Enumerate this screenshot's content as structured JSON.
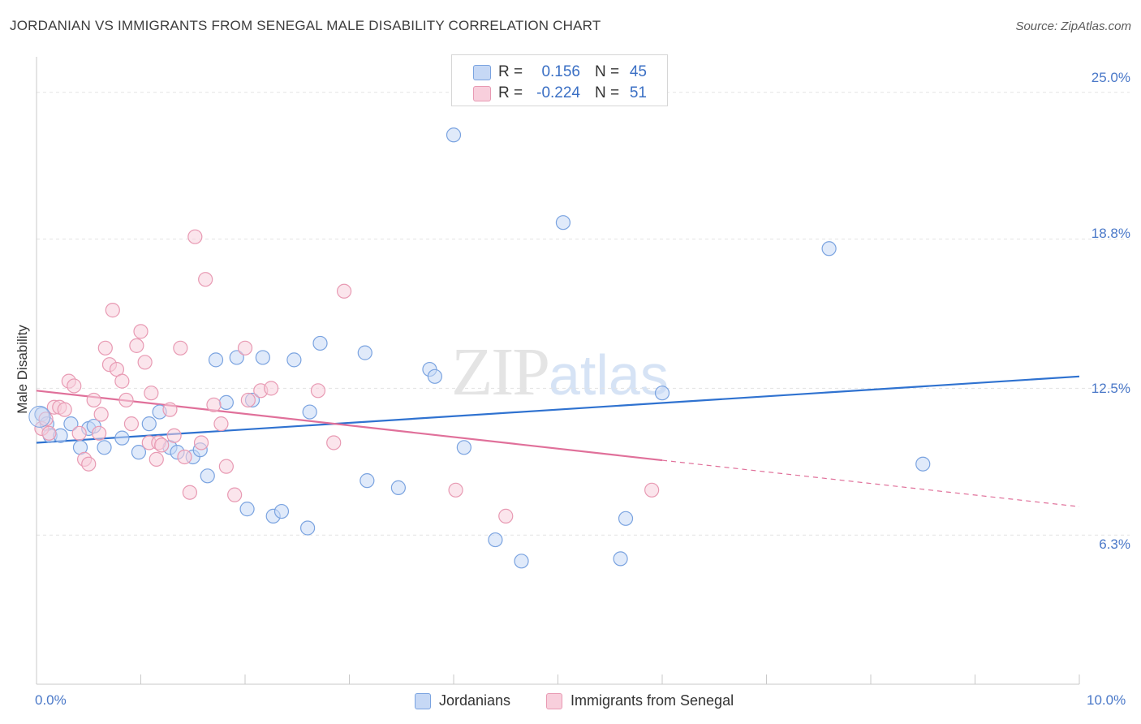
{
  "header": {
    "title": "JORDANIAN VS IMMIGRANTS FROM SENEGAL MALE DISABILITY CORRELATION CHART",
    "source": "Source: ZipAtlas.com"
  },
  "watermark": {
    "zip": "ZIP",
    "atlas": "atlas"
  },
  "stats": {
    "rows": [
      {
        "r_label": "R =",
        "r_value": "0.156",
        "n_label": "N =",
        "n_value": "45"
      },
      {
        "r_label": "R =",
        "r_value": "-0.224",
        "n_label": "N =",
        "n_value": "51"
      }
    ]
  },
  "legend": {
    "series1": "Jordanians",
    "series2": "Immigrants from Senegal"
  },
  "colors": {
    "blue_fill": "#c6d8f5",
    "blue_stroke": "#7aa3e0",
    "blue_line": "#2f72d0",
    "pink_fill": "#f8cfdc",
    "pink_stroke": "#e89ab3",
    "pink_line": "#e0709a",
    "grid": "#e3e3e3",
    "tick_label": "#4a78c8"
  },
  "chart_data": {
    "type": "scatter",
    "title": "JORDANIAN VS IMMIGRANTS FROM SENEGAL MALE DISABILITY CORRELATION CHART",
    "xlabel": "",
    "ylabel": "Male Disability",
    "xlim": [
      0,
      10
    ],
    "ylim": [
      0,
      26.5
    ],
    "x_tick_labels": [
      "0.0%",
      "10.0%"
    ],
    "y_ticks": [
      6.3,
      12.5,
      18.8,
      25.0
    ],
    "y_tick_labels": [
      "6.3%",
      "12.5%",
      "18.8%",
      "25.0%"
    ],
    "grid": true,
    "series": [
      {
        "name": "Jordanians",
        "color": "blue",
        "r": 0.156,
        "n": 45,
        "trend": {
          "x0": 0,
          "y0": 10.2,
          "x1": 10,
          "y1": 13.0,
          "solid_until": 10
        },
        "points": [
          [
            0.05,
            11.4
          ],
          [
            0.1,
            11.0
          ],
          [
            0.13,
            10.5
          ],
          [
            0.23,
            10.5
          ],
          [
            0.33,
            11.0
          ],
          [
            0.42,
            10.0
          ],
          [
            0.5,
            10.8
          ],
          [
            0.55,
            10.9
          ],
          [
            0.65,
            10.0
          ],
          [
            0.82,
            10.4
          ],
          [
            0.98,
            9.8
          ],
          [
            1.08,
            11.0
          ],
          [
            1.18,
            11.5
          ],
          [
            1.28,
            10.0
          ],
          [
            1.35,
            9.8
          ],
          [
            1.5,
            9.6
          ],
          [
            1.57,
            9.9
          ],
          [
            1.64,
            8.8
          ],
          [
            1.72,
            13.7
          ],
          [
            1.82,
            11.9
          ],
          [
            1.92,
            13.8
          ],
          [
            2.02,
            7.4
          ],
          [
            2.07,
            12.0
          ],
          [
            2.17,
            13.8
          ],
          [
            2.27,
            7.1
          ],
          [
            2.35,
            7.3
          ],
          [
            2.47,
            13.7
          ],
          [
            2.6,
            6.6
          ],
          [
            2.62,
            11.5
          ],
          [
            2.72,
            14.4
          ],
          [
            3.15,
            14.0
          ],
          [
            3.17,
            8.6
          ],
          [
            3.47,
            8.3
          ],
          [
            3.77,
            13.3
          ],
          [
            3.82,
            13.0
          ],
          [
            4.0,
            23.2
          ],
          [
            4.1,
            10.0
          ],
          [
            4.4,
            6.1
          ],
          [
            4.65,
            5.2
          ],
          [
            5.05,
            19.5
          ],
          [
            5.6,
            5.3
          ],
          [
            5.65,
            7.0
          ],
          [
            6.0,
            12.3
          ],
          [
            7.6,
            18.4
          ],
          [
            8.5,
            9.3
          ]
        ]
      },
      {
        "name": "Immigrants from Senegal",
        "color": "pink",
        "r": -0.224,
        "n": 51,
        "trend": {
          "x0": 0,
          "y0": 12.4,
          "x1": 10,
          "y1": 7.5,
          "solid_until": 6.0
        },
        "points": [
          [
            0.05,
            10.8
          ],
          [
            0.09,
            11.2
          ],
          [
            0.12,
            10.6
          ],
          [
            0.17,
            11.7
          ],
          [
            0.22,
            11.7
          ],
          [
            0.27,
            11.6
          ],
          [
            0.31,
            12.8
          ],
          [
            0.36,
            12.6
          ],
          [
            0.41,
            10.6
          ],
          [
            0.46,
            9.5
          ],
          [
            0.5,
            9.3
          ],
          [
            0.55,
            12.0
          ],
          [
            0.6,
            10.6
          ],
          [
            0.62,
            11.4
          ],
          [
            0.66,
            14.2
          ],
          [
            0.7,
            13.5
          ],
          [
            0.73,
            15.8
          ],
          [
            0.77,
            13.3
          ],
          [
            0.82,
            12.8
          ],
          [
            0.86,
            12.0
          ],
          [
            0.91,
            11.0
          ],
          [
            0.96,
            14.3
          ],
          [
            1.0,
            14.9
          ],
          [
            1.04,
            13.6
          ],
          [
            1.08,
            10.2
          ],
          [
            1.1,
            12.3
          ],
          [
            1.15,
            9.5
          ],
          [
            1.17,
            10.2
          ],
          [
            1.2,
            10.1
          ],
          [
            1.28,
            11.6
          ],
          [
            1.32,
            10.5
          ],
          [
            1.38,
            14.2
          ],
          [
            1.42,
            9.6
          ],
          [
            1.47,
            8.1
          ],
          [
            1.52,
            18.9
          ],
          [
            1.58,
            10.2
          ],
          [
            1.62,
            17.1
          ],
          [
            1.7,
            11.8
          ],
          [
            1.77,
            11.0
          ],
          [
            1.82,
            9.2
          ],
          [
            1.9,
            8.0
          ],
          [
            2.0,
            14.2
          ],
          [
            2.03,
            12.0
          ],
          [
            2.15,
            12.4
          ],
          [
            2.25,
            12.5
          ],
          [
            2.7,
            12.4
          ],
          [
            2.85,
            10.2
          ],
          [
            2.95,
            16.6
          ],
          [
            4.02,
            8.2
          ],
          [
            4.5,
            7.1
          ],
          [
            5.9,
            8.2
          ]
        ]
      }
    ]
  }
}
